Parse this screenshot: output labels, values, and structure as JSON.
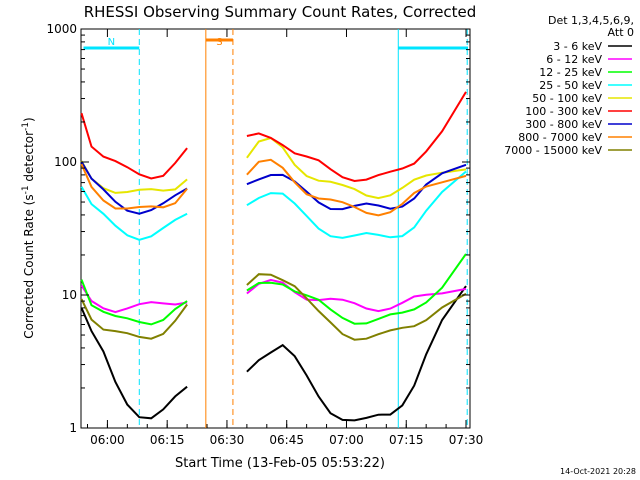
{
  "chart_data": {
    "type": "line",
    "title": "RHESSI Observing Summary Count Rates, Corrected",
    "xlabel": "Start Time (13-Feb-05 05:53:22)",
    "ylabel_main": "Corrected Count Rate (s",
    "ylabel_sup1": "-1",
    "ylabel_mid": " detector",
    "ylabel_sup2": "-1",
    "ylabel_end": ")",
    "yscale": "log",
    "ylim": [
      1,
      1000
    ],
    "xlim_minutes": [
      53.37,
      151.0
    ],
    "x_ticks": [
      {
        "label": "06:00",
        "value": 60
      },
      {
        "label": "06:15",
        "value": 75
      },
      {
        "label": "06:30",
        "value": 90
      },
      {
        "label": "06:45",
        "value": 105
      },
      {
        "label": "07:00",
        "value": 120
      },
      {
        "label": "07:15",
        "value": 135
      },
      {
        "label": "07:30",
        "value": 150
      }
    ],
    "y_ticks": [
      {
        "label": "1",
        "value": 1
      },
      {
        "label": "10",
        "value": 10
      },
      {
        "label": "100",
        "value": 100
      },
      {
        "label": "1000",
        "value": 1000
      }
    ],
    "legend": {
      "header1": "Det 1,3,4,5,6,9,",
      "header2": "Att 0",
      "placement": "right"
    },
    "data_gap_minutes": [
      84.5,
      93.0
    ],
    "series": [
      {
        "name": "3 - 6 keV",
        "color": "#000000",
        "values": [
          8,
          5,
          3.5,
          2.2,
          1.6,
          1.3,
          1.2,
          1.3,
          1.6,
          2.0,
          2.8,
          3.5,
          3.8,
          4.0,
          3.2,
          2.4,
          1.8,
          1.4,
          1.2,
          1.1,
          1.1,
          1.2,
          1.3,
          1.6,
          2.2,
          3.5,
          6,
          11
        ]
      },
      {
        "name": "6 - 12 keV",
        "color": "#ff00ff",
        "values": [
          11,
          9,
          8.5,
          8,
          8,
          8,
          8.2,
          8.5,
          9,
          9.5,
          10.5,
          11.5,
          12,
          12,
          11,
          10,
          9.5,
          9,
          8.5,
          8.3,
          8.2,
          8.2,
          8.3,
          8.5,
          9,
          9.5,
          10.5,
          12
        ]
      },
      {
        "name": "12 - 25 keV",
        "color": "#00ff00",
        "values": [
          14,
          9,
          7.5,
          6.5,
          6.2,
          6.2,
          6.4,
          7,
          8,
          8.5,
          10,
          12,
          13,
          13,
          11,
          9.5,
          8.5,
          7.5,
          7,
          6.6,
          6.4,
          6.4,
          6.6,
          7,
          8,
          9.5,
          12,
          20
        ]
      },
      {
        "name": "25 - 50 keV",
        "color": "#00ffff",
        "values": [
          65,
          45,
          38,
          33,
          30,
          28,
          28,
          30,
          34,
          40,
          50,
          58,
          60,
          55,
          45,
          38,
          33,
          30,
          28,
          27,
          27,
          27,
          28,
          30,
          34,
          42,
          55,
          80
        ]
      },
      {
        "name": "50 - 100 keV",
        "color": "#e6e600",
        "values": [
          95,
          75,
          68,
          63,
          60,
          58,
          58,
          60,
          66,
          80,
          110,
          135,
          140,
          125,
          100,
          85,
          75,
          68,
          62,
          60,
          58,
          58,
          59,
          62,
          68,
          75,
          85,
          95
        ]
      },
      {
        "name": "100 - 300 keV",
        "color": "#ff0000",
        "values": [
          250,
          140,
          110,
          95,
          85,
          80,
          80,
          85,
          100,
          120,
          145,
          160,
          160,
          145,
          120,
          105,
          95,
          85,
          80,
          78,
          77,
          77,
          78,
          85,
          100,
          130,
          180,
          330
        ]
      },
      {
        "name": "300 - 800 keV",
        "color": "#0000cc",
        "values": [
          100,
          70,
          58,
          50,
          46,
          44,
          44,
          46,
          52,
          62,
          72,
          80,
          82,
          76,
          66,
          58,
          52,
          48,
          46,
          45,
          45,
          45,
          46,
          50,
          56,
          66,
          76,
          90
        ]
      },
      {
        "name": "800 - 7000 keV",
        "color": "#ff8000",
        "values": [
          90,
          65,
          55,
          48,
          45,
          43,
          43,
          45,
          52,
          68,
          82,
          95,
          96,
          88,
          74,
          62,
          55,
          50,
          46,
          44,
          43,
          43,
          44,
          47,
          54,
          62,
          72,
          85
        ]
      },
      {
        "name": "7000 - 15000 keV",
        "color": "#808000",
        "values": [
          10,
          7,
          5.5,
          5,
          4.8,
          4.8,
          5,
          5.5,
          6.5,
          8,
          11,
          14,
          15,
          14,
          12,
          9,
          7,
          6,
          5.3,
          5,
          4.9,
          4.9,
          5,
          5.4,
          6,
          7,
          8.5,
          10
        ]
      }
    ],
    "x_minutes": [
      53.5,
      56,
      59,
      62,
      65,
      68,
      71,
      74,
      77,
      80,
      95,
      98,
      101,
      104,
      107,
      110,
      113,
      116,
      119,
      122,
      125,
      128,
      131,
      134,
      137,
      140,
      144,
      150
    ],
    "annotations": [
      {
        "label": "N",
        "color": "#00e5ff",
        "span": [
          54.0,
          68.0
        ],
        "line_at": 68.0,
        "style": "dashed"
      },
      {
        "label": "",
        "color": "#00e5ff",
        "span": [
          133.0,
          150.5
        ],
        "line_at": 150.3,
        "style": "dashed"
      },
      {
        "label": "",
        "color": "#00e5ff",
        "line_at": 133.0,
        "style": "solid"
      },
      {
        "label": "S",
        "color": "#ff8000",
        "span": [
          84.7,
          91.5
        ],
        "line_at": 91.5,
        "style": "dashed"
      },
      {
        "label": "",
        "color": "#ff8000",
        "line_at": 84.7,
        "style": "solid"
      }
    ]
  },
  "footer": {
    "date_stamp": "14-Oct-2021 20:28"
  }
}
